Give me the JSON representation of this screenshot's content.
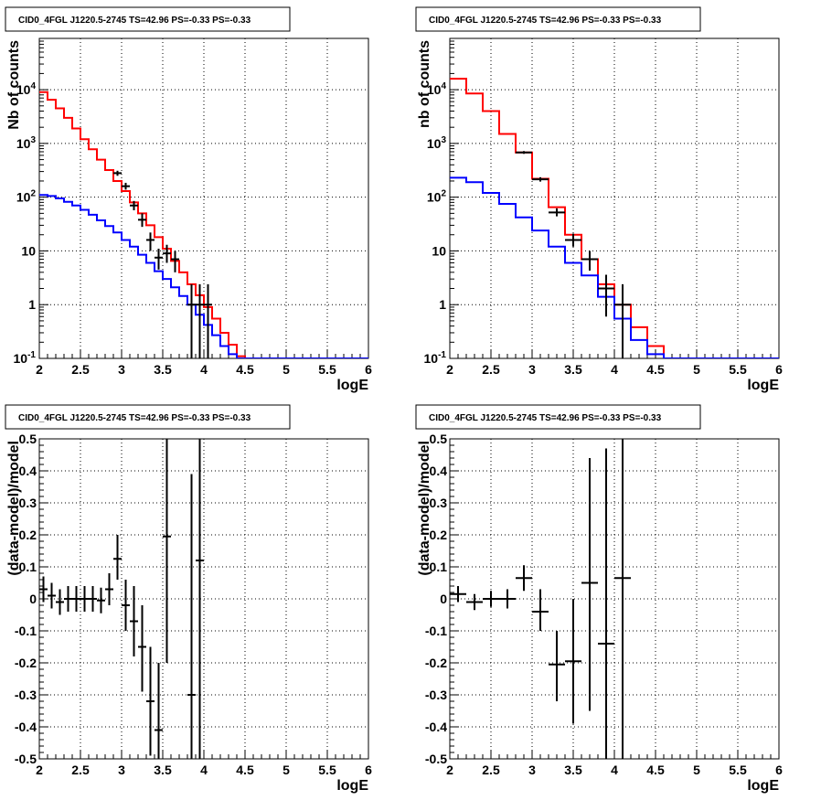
{
  "chart_data": [
    {
      "type": "histogram",
      "title": "CID0_4FGL J1220.5-2745 TS=42.96 PS=-0.33 PS=-0.33",
      "xlabel": "logE",
      "ylabel": "Nb of counts",
      "xlim": [
        2,
        6
      ],
      "ylim": [
        0.1,
        90000
      ],
      "yscale": "log",
      "grid": true,
      "x_ticks": [
        "2",
        "2.5",
        "3",
        "3.5",
        "4",
        "4.5",
        "5",
        "5.5",
        "6"
      ],
      "y_ticks": [
        "10^-1",
        "1",
        "10",
        "10^2",
        "10^3",
        "10^4"
      ],
      "bin_edges": [
        2.0,
        2.1,
        2.2,
        2.3,
        2.4,
        2.5,
        2.6,
        2.7,
        2.8,
        2.9,
        3.0,
        3.1,
        3.2,
        3.3,
        3.4,
        3.5,
        3.6,
        3.7,
        3.8,
        3.9,
        4.0,
        4.1,
        4.2,
        4.3,
        4.4,
        4.5,
        4.6,
        4.7,
        4.8,
        4.9,
        5.0,
        5.1,
        5.2,
        5.3,
        5.4,
        5.5,
        5.6,
        5.7,
        5.8,
        5.9,
        6.0
      ],
      "series": [
        {
          "color": "#ff0000",
          "kind": "step",
          "values": [
            9000,
            6500,
            4500,
            3000,
            1900,
            1200,
            780,
            500,
            320,
            200,
            130,
            80,
            50,
            30,
            18,
            11,
            6.5,
            4.0,
            2.4,
            1.5,
            0.9,
            0.55,
            0.3,
            0.18,
            0.11,
            0.1,
            0.1,
            0.1,
            0.1,
            0.1,
            0.1,
            0.1,
            0.1,
            0.1,
            0.1,
            0.1,
            0.1,
            0.1,
            0.1,
            0.1
          ]
        },
        {
          "color": "#0000ff",
          "kind": "step",
          "values": [
            110,
            105,
            95,
            82,
            70,
            58,
            47,
            37,
            29,
            22,
            16,
            12,
            8.5,
            6,
            4.2,
            3.0,
            2.1,
            1.45,
            1.0,
            0.65,
            0.42,
            0.27,
            0.17,
            0.12,
            0.1,
            0.1,
            0.1,
            0.1,
            0.1,
            0.1,
            0.1,
            0.1,
            0.1,
            0.1,
            0.1,
            0.1,
            0.1,
            0.1,
            0.1,
            0.1
          ]
        },
        {
          "color": "#000000",
          "kind": "points",
          "points": [
            {
              "x": 2.95,
              "y": 280,
              "ylo": 250,
              "yhi": 310
            },
            {
              "x": 3.05,
              "y": 160,
              "ylo": 138,
              "yhi": 185
            },
            {
              "x": 3.15,
              "y": 70,
              "ylo": 57,
              "yhi": 85
            },
            {
              "x": 3.25,
              "y": 38,
              "ylo": 28,
              "yhi": 50
            },
            {
              "x": 3.35,
              "y": 16,
              "ylo": 10,
              "yhi": 22
            },
            {
              "x": 3.45,
              "y": 7.5,
              "ylo": 4.5,
              "yhi": 11
            },
            {
              "x": 3.55,
              "y": 9,
              "ylo": 6,
              "yhi": 13
            },
            {
              "x": 3.65,
              "y": 7,
              "ylo": 4,
              "yhi": 10
            },
            {
              "x": 3.85,
              "y": 1,
              "ylo": 0.1,
              "yhi": 2.4
            },
            {
              "x": 3.95,
              "y": 1,
              "ylo": 0.1,
              "yhi": 2.4
            },
            {
              "x": 4.05,
              "y": 1,
              "ylo": 0.1,
              "yhi": 2.4
            }
          ]
        }
      ]
    },
    {
      "type": "histogram",
      "title": "CID0_4FGL J1220.5-2745 TS=42.96 PS=-0.33 PS=-0.33",
      "xlabel": "logE",
      "ylabel": "nb of counts",
      "xlim": [
        2,
        6
      ],
      "ylim": [
        0.1,
        90000
      ],
      "yscale": "log",
      "grid": true,
      "x_ticks": [
        "2",
        "2.5",
        "3",
        "3.5",
        "4",
        "4.5",
        "5",
        "5.5",
        "6"
      ],
      "y_ticks": [
        "10^-1",
        "1",
        "10",
        "10^2",
        "10^3",
        "10^4"
      ],
      "bin_edges": [
        2.0,
        2.2,
        2.4,
        2.6,
        2.8,
        3.0,
        3.2,
        3.4,
        3.6,
        3.8,
        4.0,
        4.2,
        4.4,
        4.6,
        4.8,
        5.0,
        5.2,
        5.4,
        5.6,
        5.8,
        6.0
      ],
      "series": [
        {
          "color": "#ff0000",
          "kind": "step",
          "values": [
            16000,
            8500,
            4000,
            1500,
            680,
            220,
            65,
            20,
            7,
            2.4,
            1.0,
            0.38,
            0.17,
            0.1,
            0.1,
            0.1,
            0.1,
            0.1,
            0.1,
            0.1
          ]
        },
        {
          "color": "#0000ff",
          "kind": "step",
          "values": [
            230,
            190,
            120,
            75,
            42,
            24,
            12,
            6,
            3.5,
            1.4,
            0.55,
            0.22,
            0.12,
            0.1,
            0.1,
            0.1,
            0.1,
            0.1,
            0.1,
            0.1
          ]
        },
        {
          "color": "#000000",
          "kind": "points",
          "points": [
            {
              "x": 2.9,
              "y": 680,
              "ylo": 640,
              "yhi": 720
            },
            {
              "x": 3.1,
              "y": 215,
              "ylo": 195,
              "yhi": 235
            },
            {
              "x": 3.3,
              "y": 52,
              "ylo": 44,
              "yhi": 62
            },
            {
              "x": 3.5,
              "y": 16,
              "ylo": 12,
              "yhi": 21
            },
            {
              "x": 3.7,
              "y": 7,
              "ylo": 4.3,
              "yhi": 10
            },
            {
              "x": 3.9,
              "y": 2,
              "ylo": 0.6,
              "yhi": 3.6
            },
            {
              "x": 4.1,
              "y": 1,
              "ylo": 0.1,
              "yhi": 2.4
            }
          ]
        }
      ]
    },
    {
      "type": "scatter",
      "title": "CID0_4FGL J1220.5-2745 TS=42.96 PS=-0.33 PS=-0.33",
      "xlabel": "logE",
      "ylabel": "(data-model)/model",
      "xlim": [
        2,
        6
      ],
      "ylim": [
        -0.5,
        0.5
      ],
      "grid": true,
      "x_ticks": [
        "2",
        "2.5",
        "3",
        "3.5",
        "4",
        "4.5",
        "5",
        "5.5",
        "6"
      ],
      "y_ticks": [
        "-0.5",
        "-0.4",
        "-0.3",
        "-0.2",
        "-0.1",
        "0",
        "0.1",
        "0.2",
        "0.3",
        "0.4",
        "0.5"
      ],
      "xerr": 0.05,
      "points": [
        {
          "x": 2.05,
          "y": 0.03,
          "ylo": -0.01,
          "yhi": 0.07
        },
        {
          "x": 2.15,
          "y": 0.01,
          "ylo": -0.03,
          "yhi": 0.05
        },
        {
          "x": 2.25,
          "y": -0.01,
          "ylo": -0.05,
          "yhi": 0.03
        },
        {
          "x": 2.35,
          "y": 0.0,
          "ylo": -0.04,
          "yhi": 0.04
        },
        {
          "x": 2.45,
          "y": 0.0,
          "ylo": -0.04,
          "yhi": 0.04
        },
        {
          "x": 2.55,
          "y": 0.0,
          "ylo": -0.04,
          "yhi": 0.04
        },
        {
          "x": 2.65,
          "y": 0.0,
          "ylo": -0.04,
          "yhi": 0.04
        },
        {
          "x": 2.75,
          "y": -0.005,
          "ylo": -0.045,
          "yhi": 0.035
        },
        {
          "x": 2.85,
          "y": 0.03,
          "ylo": -0.02,
          "yhi": 0.08
        },
        {
          "x": 2.95,
          "y": 0.125,
          "ylo": 0.06,
          "yhi": 0.2
        },
        {
          "x": 3.05,
          "y": -0.02,
          "ylo": -0.1,
          "yhi": 0.06
        },
        {
          "x": 3.15,
          "y": -0.07,
          "ylo": -0.18,
          "yhi": 0.04
        },
        {
          "x": 3.25,
          "y": -0.15,
          "ylo": -0.29,
          "yhi": -0.02
        },
        {
          "x": 3.35,
          "y": -0.32,
          "ylo": -0.49,
          "yhi": -0.15
        },
        {
          "x": 3.45,
          "y": -0.41,
          "ylo": -0.5,
          "yhi": -0.2
        },
        {
          "x": 3.55,
          "y": 0.195,
          "ylo": -0.2,
          "yhi": 0.5
        },
        {
          "x": 3.85,
          "y": -0.3,
          "ylo": -0.5,
          "yhi": 0.39
        },
        {
          "x": 3.95,
          "y": 0.12,
          "ylo": -0.5,
          "yhi": 0.5
        }
      ]
    },
    {
      "type": "scatter",
      "title": "CID0_4FGL J1220.5-2745 TS=42.96 PS=-0.33 PS=-0.33",
      "xlabel": "logE",
      "ylabel": "(data-model)/model",
      "xlim": [
        2,
        6
      ],
      "ylim": [
        -0.5,
        0.5
      ],
      "grid": true,
      "x_ticks": [
        "2",
        "2.5",
        "3",
        "3.5",
        "4",
        "4.5",
        "5",
        "5.5",
        "6"
      ],
      "y_ticks": [
        "-0.5",
        "-0.4",
        "-0.3",
        "-0.2",
        "-0.1",
        "0",
        "0.1",
        "0.2",
        "0.3",
        "0.4",
        "0.5"
      ],
      "xerr": 0.1,
      "points": [
        {
          "x": 2.1,
          "y": 0.015,
          "ylo": -0.01,
          "yhi": 0.04
        },
        {
          "x": 2.3,
          "y": -0.01,
          "ylo": -0.035,
          "yhi": 0.015
        },
        {
          "x": 2.5,
          "y": 0.0,
          "ylo": -0.025,
          "yhi": 0.025
        },
        {
          "x": 2.7,
          "y": 0.0,
          "ylo": -0.03,
          "yhi": 0.03
        },
        {
          "x": 2.9,
          "y": 0.065,
          "ylo": 0.025,
          "yhi": 0.105
        },
        {
          "x": 3.1,
          "y": -0.04,
          "ylo": -0.1,
          "yhi": 0.03
        },
        {
          "x": 3.3,
          "y": -0.205,
          "ylo": -0.32,
          "yhi": -0.1
        },
        {
          "x": 3.5,
          "y": -0.195,
          "ylo": -0.39,
          "yhi": 0.0
        },
        {
          "x": 3.7,
          "y": 0.05,
          "ylo": -0.35,
          "yhi": 0.44
        },
        {
          "x": 3.9,
          "y": -0.14,
          "ylo": -0.5,
          "yhi": 0.47
        },
        {
          "x": 4.1,
          "y": 0.065,
          "ylo": -0.5,
          "yhi": 0.5
        }
      ]
    }
  ]
}
